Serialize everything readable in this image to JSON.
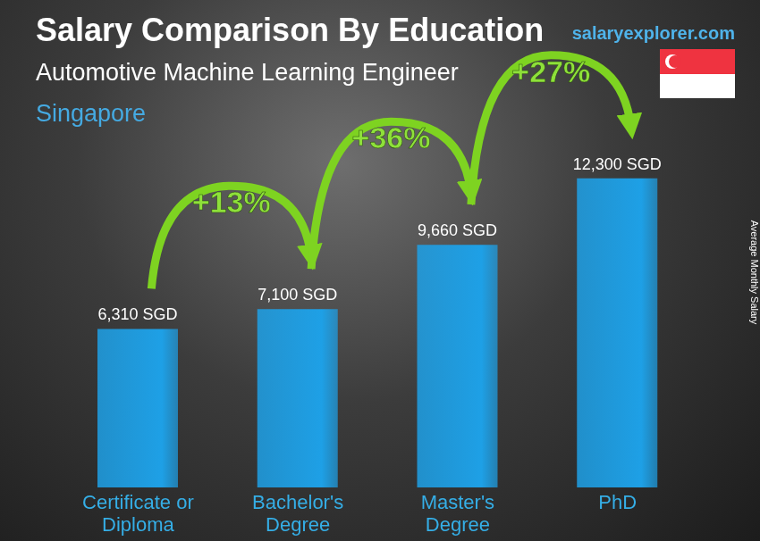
{
  "chart_data": {
    "type": "bar",
    "title": "Salary Comparison By Education",
    "subtitle": "Automotive Machine Learning Engineer",
    "location": "Singapore",
    "source": "salaryexplorer.com",
    "y_label": "Average Monthly Salary",
    "categories": [
      "Certificate or Diploma",
      "Bachelor's Degree",
      "Master's Degree",
      "PhD"
    ],
    "values": [
      6310,
      7100,
      9660,
      12300
    ],
    "value_labels": [
      "6,310 SGD",
      "7,100 SGD",
      "9,660 SGD",
      "12,300 SGD"
    ],
    "annotations": [
      "+13%",
      "+36%",
      "+27%"
    ],
    "color": "#1ea0e6",
    "ylim": [
      0,
      14000
    ],
    "data_labels": true,
    "tick_labels": "x",
    "grid": false
  }
}
